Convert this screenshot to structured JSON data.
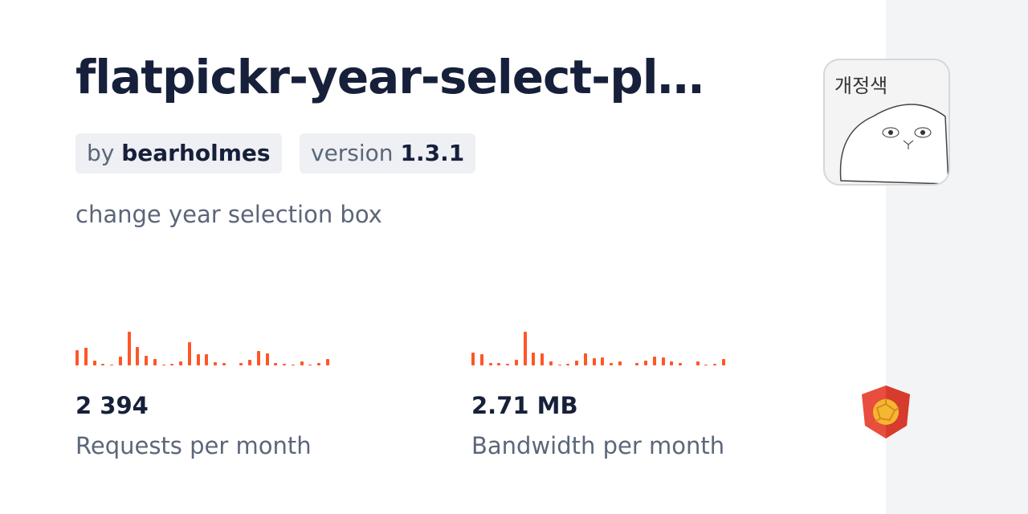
{
  "package": {
    "title": "flatpickr-year-select-pl…",
    "author_prefix": "by",
    "author": "bearholmes",
    "version_prefix": "version",
    "version": "1.3.1",
    "description": "change year selection box",
    "avatar_text": "개정색"
  },
  "stats": {
    "requests": {
      "value": "2 394",
      "label": "Requests per month"
    },
    "bandwidth": {
      "value": "2.71 MB",
      "label": "Bandwidth per month"
    }
  },
  "chart_data": [
    {
      "type": "bar",
      "name": "requests-sparkline",
      "values": [
        57,
        66,
        18,
        6,
        3,
        34,
        127,
        69,
        37,
        25,
        3,
        5,
        15,
        89,
        41,
        41,
        12,
        9,
        0,
        9,
        21,
        54,
        44,
        9,
        6,
        3,
        15,
        3,
        8,
        25
      ]
    },
    {
      "type": "bar",
      "name": "bandwidth-sparkline",
      "values": [
        47,
        41,
        9,
        9,
        6,
        21,
        127,
        47,
        44,
        15,
        3,
        6,
        18,
        44,
        28,
        31,
        9,
        15,
        0,
        9,
        18,
        34,
        31,
        15,
        9,
        0,
        15,
        3,
        6,
        25
      ]
    }
  ],
  "colors": {
    "accent": "#ff5627",
    "text": "#17203a",
    "muted": "#5c6679"
  },
  "icons": {
    "logo": "jsdelivr-logo"
  }
}
